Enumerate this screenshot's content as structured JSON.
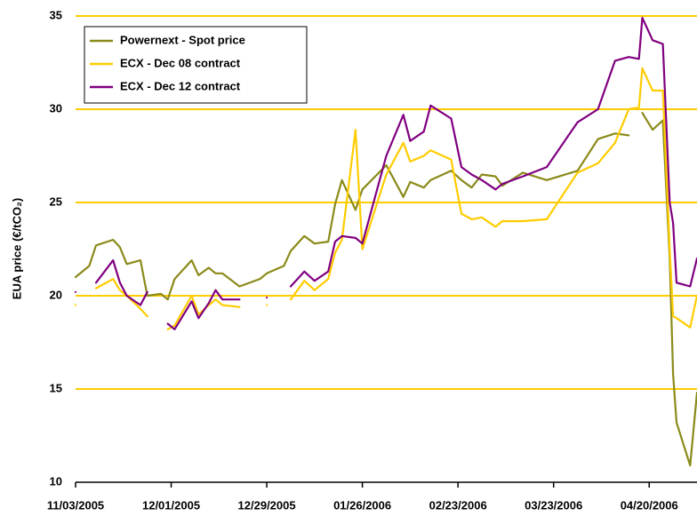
{
  "chart_data": {
    "type": "line",
    "ylabel": "EUA price (€/tCO₂)",
    "x": [
      "11/03/2005",
      "11/07/2005",
      "11/09/2005",
      "11/14/2005",
      "11/16/2005",
      "11/18/2005",
      "11/22/2005",
      "11/24/2005",
      "11/28/2005",
      "11/30/2005",
      "12/02/2005",
      "12/07/2005",
      "12/09/2005",
      "12/12/2005",
      "12/14/2005",
      "12/16/2005",
      "12/21/2005",
      "12/27/2005",
      "12/29/2005",
      "01/03/2006",
      "01/05/2006",
      "01/09/2006",
      "01/12/2006",
      "01/16/2006",
      "01/18/2006",
      "01/20/2006",
      "01/24/2006",
      "01/26/2006",
      "02/02/2006",
      "02/07/2006",
      "02/09/2006",
      "02/13/2006",
      "02/15/2006",
      "02/21/2006",
      "02/24/2006",
      "02/27/2006",
      "03/02/2006",
      "03/06/2006",
      "03/08/2006",
      "03/14/2006",
      "03/21/2006",
      "03/30/2006",
      "04/05/2006",
      "04/10/2006",
      "04/14/2006",
      "04/17/2006",
      "04/18/2006",
      "04/21/2006",
      "04/24/2006",
      "04/26/2006",
      "04/27/2006",
      "04/28/2006",
      "05/02/2006",
      "05/04/2006"
    ],
    "series": [
      {
        "name": "Powernext - Spot price",
        "color": "#8a8a1a",
        "values": [
          21.0,
          21.6,
          22.7,
          23.0,
          22.6,
          21.7,
          21.9,
          20.0,
          20.1,
          19.8,
          20.9,
          21.9,
          21.1,
          21.5,
          21.2,
          21.2,
          20.5,
          20.9,
          21.2,
          21.6,
          22.4,
          23.2,
          22.8,
          22.9,
          24.9,
          26.2,
          24.6,
          25.7,
          27.0,
          25.3,
          26.1,
          25.8,
          26.2,
          26.7,
          26.2,
          25.8,
          26.5,
          26.4,
          25.9,
          26.6,
          26.2,
          26.7,
          28.4,
          28.7,
          28.6,
          null,
          29.8,
          28.9,
          29.4,
          22.0,
          15.8,
          13.2,
          10.9,
          14.8
        ]
      },
      {
        "name": "ECX - Dec 08 contract",
        "color": "#ffcc00",
        "values": [
          19.5,
          null,
          20.4,
          20.9,
          20.3,
          20.0,
          19.3,
          18.9,
          null,
          18.2,
          18.4,
          20.0,
          19.0,
          19.5,
          19.8,
          19.5,
          19.4,
          null,
          19.5,
          null,
          19.8,
          20.8,
          20.3,
          20.9,
          22.3,
          23.0,
          28.9,
          22.5,
          26.5,
          28.2,
          27.2,
          27.5,
          27.8,
          27.3,
          24.4,
          24.1,
          24.2,
          23.7,
          24.0,
          24.0,
          24.1,
          26.6,
          27.1,
          28.2,
          30.0,
          30.1,
          32.2,
          31.0,
          31.0,
          22.5,
          18.9,
          18.8,
          18.3,
          20.0
        ]
      },
      {
        "name": "ECX - Dec 12 contract",
        "color": "#800080",
        "values": [
          20.2,
          null,
          20.7,
          21.9,
          20.7,
          20.0,
          19.5,
          20.2,
          null,
          18.5,
          18.2,
          19.7,
          18.8,
          19.6,
          20.3,
          19.8,
          19.8,
          null,
          19.9,
          null,
          20.5,
          21.3,
          20.8,
          21.3,
          22.9,
          23.2,
          23.1,
          22.8,
          27.5,
          29.7,
          28.3,
          28.8,
          30.2,
          29.5,
          26.9,
          26.5,
          26.2,
          25.7,
          26.0,
          26.4,
          26.9,
          29.3,
          30.0,
          32.6,
          32.8,
          32.7,
          34.9,
          33.7,
          33.5,
          25.0,
          23.9,
          20.7,
          20.5,
          22.0
        ]
      }
    ],
    "xlim": [
      "11/03/2005",
      "05/04/2006"
    ],
    "xticks": [
      "11/03/2005",
      "12/01/2005",
      "12/29/2005",
      "01/26/2006",
      "02/23/2006",
      "03/23/2006",
      "04/20/2006"
    ],
    "ylim": [
      10,
      35
    ],
    "yticks": [
      10,
      15,
      20,
      25,
      30,
      35
    ],
    "grid": true,
    "grid_color": "#ffcc00",
    "legend": "upper left"
  }
}
